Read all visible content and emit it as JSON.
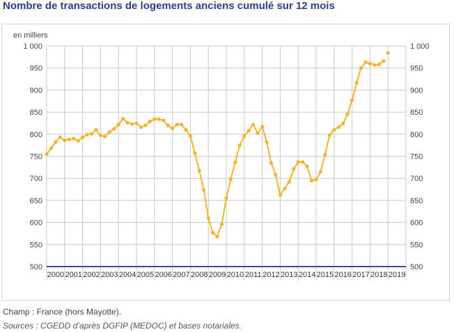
{
  "title": "Nombre de transactions de logements anciens cumulé sur 12 mois",
  "footnotes": {
    "champ": "Champ : France (hors Mayotte).",
    "sources": "Sources : CGEDD d’après DGFIP (MEDOC) et bases notariales."
  },
  "colors": {
    "line": "#f5b32f",
    "baseline": "#3b4a9e",
    "grid": "#c8c8c8",
    "title": "#2a3f84"
  },
  "chart_data": {
    "type": "line",
    "title": "Nombre de transactions de logements anciens cumulé sur 12 mois",
    "ylabel": "en milliers",
    "ylim": [
      500,
      1000
    ],
    "yticks": [
      500,
      550,
      600,
      650,
      700,
      750,
      800,
      850,
      900,
      950,
      1000
    ],
    "ytick_labels": [
      "500",
      "550",
      "600",
      "650",
      "700",
      "750",
      "800",
      "850",
      "900",
      "950",
      "1 000"
    ],
    "xlim": [
      2000,
      2020
    ],
    "year_labels": [
      "2000",
      "2001",
      "2002",
      "2003",
      "2004",
      "2005",
      "2006",
      "2007",
      "2008",
      "2009",
      "2010",
      "2011",
      "2012",
      "2013",
      "2014",
      "2015",
      "2016",
      "2017",
      "2018",
      "2019"
    ],
    "grid": true,
    "legend": "none",
    "series": [
      {
        "x": [
          2000.0,
          2000.25,
          2000.5,
          2000.75,
          2001.0,
          2001.25,
          2001.5,
          2001.75,
          2002.0,
          2002.25,
          2002.5,
          2002.75,
          2003.0,
          2003.25,
          2003.5,
          2003.75,
          2004.0,
          2004.25,
          2004.5,
          2004.75,
          2005.0,
          2005.25,
          2005.5,
          2005.75,
          2006.0,
          2006.25,
          2006.5,
          2006.75,
          2007.0,
          2007.25,
          2007.5,
          2007.75,
          2008.0,
          2008.25,
          2008.5,
          2008.75,
          2009.0,
          2009.25,
          2009.5,
          2009.75,
          2010.0,
          2010.25,
          2010.5,
          2010.75,
          2011.0,
          2011.25,
          2011.5,
          2011.75,
          2012.0,
          2012.25,
          2012.5,
          2012.75,
          2013.0,
          2013.25,
          2013.5,
          2013.75,
          2014.0,
          2014.25,
          2014.5,
          2014.75,
          2015.0,
          2015.25,
          2015.5,
          2015.75,
          2016.0,
          2016.25,
          2016.5,
          2016.75,
          2017.0,
          2017.25,
          2017.5,
          2017.75,
          2018.0,
          2018.25,
          2018.5,
          2018.75
        ],
        "values": [
          755,
          768,
          782,
          793,
          786,
          788,
          790,
          785,
          793,
          799,
          801,
          810,
          797,
          795,
          805,
          812,
          822,
          835,
          826,
          823,
          825,
          816,
          820,
          829,
          834,
          834,
          831,
          820,
          813,
          822,
          822,
          810,
          796,
          757,
          717,
          673,
          610,
          577,
          568,
          596,
          655,
          698,
          737,
          775,
          796,
          808,
          822,
          802,
          817,
          782,
          735,
          708,
          662,
          677,
          692,
          721,
          737,
          737,
          727,
          695,
          697,
          715,
          754,
          798,
          810,
          816,
          824,
          846,
          877,
          916,
          950,
          963,
          960,
          957,
          958,
          966
        ]
      }
    ],
    "extra_points": [
      {
        "x": 2019.0,
        "value": 984
      }
    ]
  }
}
